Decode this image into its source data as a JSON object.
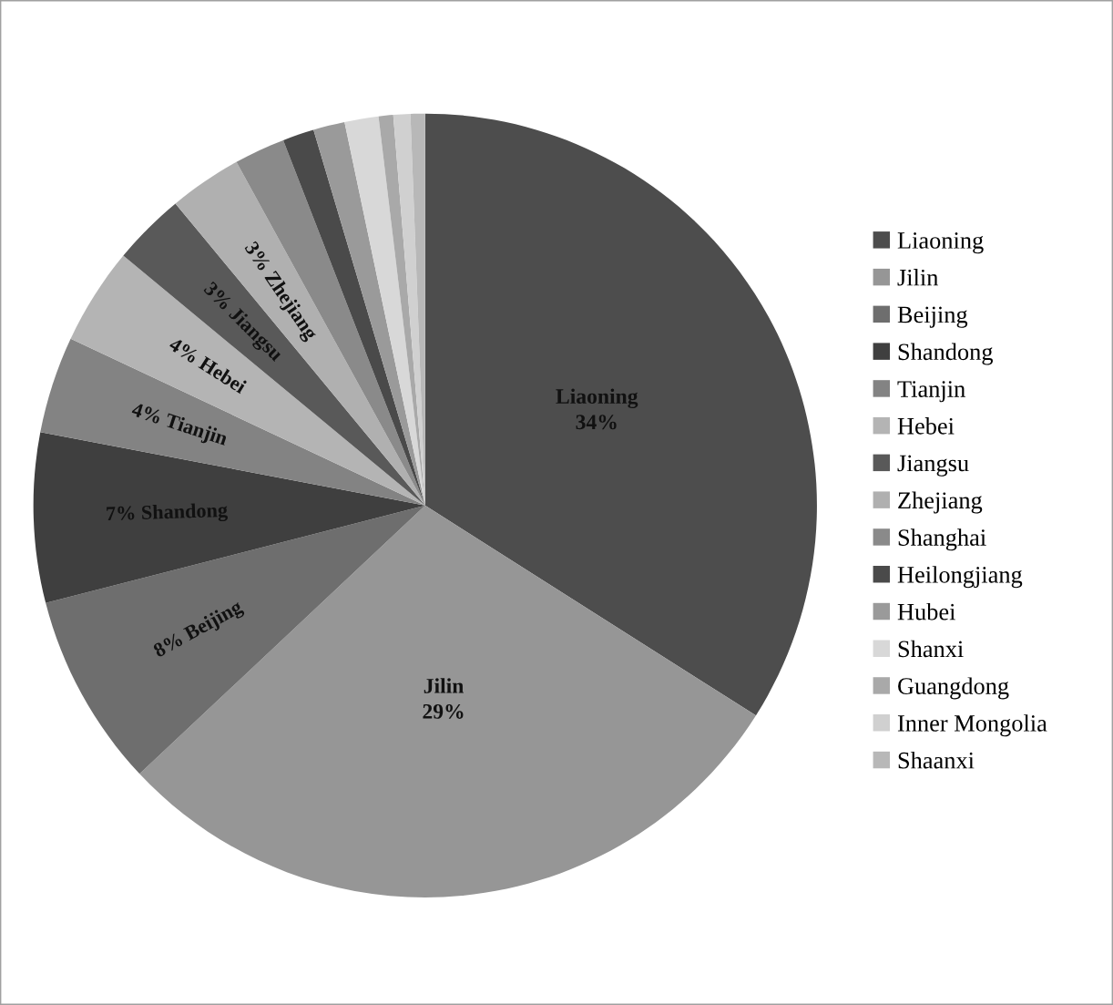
{
  "chart_data": {
    "type": "pie",
    "categories": [
      "Liaoning",
      "Jilin",
      "Beijing",
      "Shandong",
      "Tianjin",
      "Hebei",
      "Jiangsu",
      "Zhejiang",
      "Shanghai",
      "Heilongjiang",
      "Hubei",
      "Shanxi",
      "Guangdong",
      "Inner Mongolia",
      "Shaanxi"
    ],
    "values": [
      34,
      29,
      8,
      7,
      4,
      4,
      3,
      3,
      2.1,
      1.3,
      1.3,
      1.4,
      0.6,
      0.7,
      0.6
    ],
    "colors": [
      "#4d4d4d",
      "#969696",
      "#6e6e6e",
      "#3f3f3f",
      "#838383",
      "#b4b4b4",
      "#595959",
      "#b0b0b0",
      "#8a8a8a",
      "#4a4a4a",
      "#9a9a9a",
      "#d8d8d8",
      "#a9a9a9",
      "#d0d0d0",
      "#b8b8b8"
    ],
    "value_labels": [
      "Liaoning\n34%",
      "Jilin\n29%",
      "8% Beijing",
      "7% Shandong",
      "4% Tianjin",
      "4% Hebei",
      "3% Jiangsu",
      "3% Zhejiang",
      null,
      null,
      null,
      null,
      null,
      null,
      null
    ],
    "legend": "right"
  }
}
